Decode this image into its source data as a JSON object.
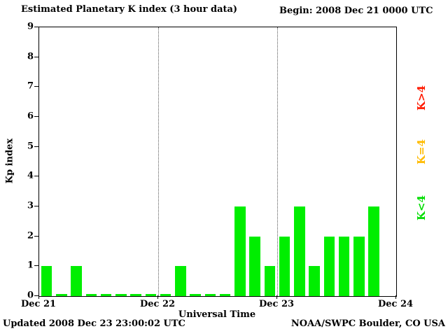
{
  "chart_data": {
    "type": "bar",
    "title": "Estimated Planetary K index (3 hour data)",
    "begin_label": "Begin: 2008 Dec 21 0000 UTC",
    "xlabel": "Universal Time",
    "ylabel": "Kp index",
    "ylim": [
      0,
      9
    ],
    "yticks": [
      0,
      1,
      2,
      3,
      4,
      5,
      6,
      7,
      8,
      9
    ],
    "x_day_labels": [
      "Dec 21",
      "Dec 22",
      "Dec 23",
      "Dec 24"
    ],
    "periods_per_day": 8,
    "num_days": 3,
    "values": [
      1,
      0,
      1,
      0,
      0,
      0,
      0,
      0,
      0,
      1,
      0,
      0,
      0,
      3,
      2,
      1,
      2,
      3,
      1,
      2,
      2,
      2,
      3
    ],
    "bar_color": "#00ee00",
    "gridlines_at_days": [
      1,
      2
    ],
    "grid": "dotted-vertical-at-day-boundaries",
    "legend_position": "right-rotated",
    "thresholds": [
      {
        "label": "K>4",
        "color": "#ff1a00"
      },
      {
        "label": "K=4",
        "color": "#ffbb00"
      },
      {
        "label": "K<4",
        "color": "#00dd00"
      }
    ]
  },
  "footer": {
    "updated": "Updated 2008 Dec 23 23:00:02 UTC",
    "credit": "NOAA/SWPC Boulder, CO USA"
  }
}
